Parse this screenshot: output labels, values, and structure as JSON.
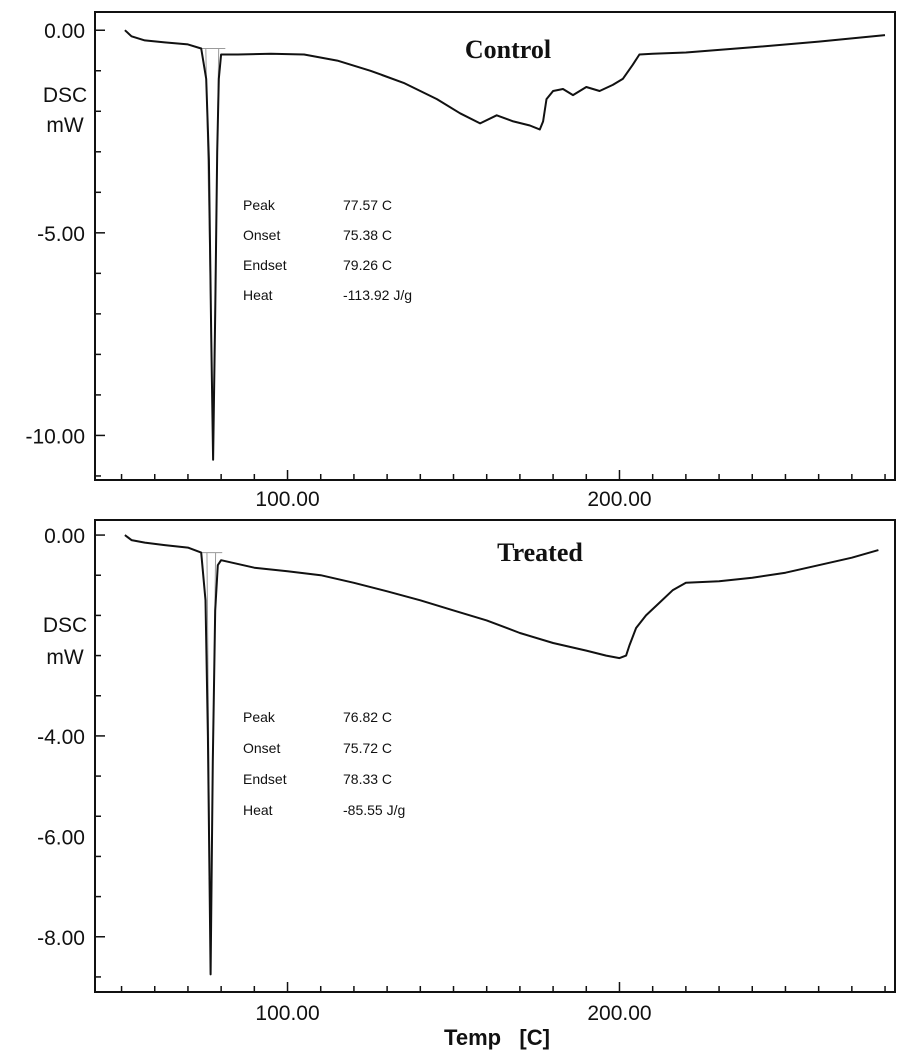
{
  "chart_data": [
    {
      "type": "line",
      "title": "Control",
      "ylabel_lines": [
        "DSC",
        "mW"
      ],
      "xlabel": "",
      "xlim": [
        42,
        283
      ],
      "ylim": [
        -11.1,
        0.45
      ],
      "x_ticks": [
        100,
        200
      ],
      "x_tick_labels": [
        "100.00",
        "200.00"
      ],
      "y_ticks": [
        0,
        -5,
        -10
      ],
      "y_tick_labels": [
        "0.00",
        "-5.00",
        "-10.00"
      ],
      "annotations": [
        {
          "label": "Peak",
          "value": "77.57 C"
        },
        {
          "label": "Onset",
          "value": "75.38 C"
        },
        {
          "label": "Endset",
          "value": "79.26 C"
        },
        {
          "label": "Heat",
          "value": "-113.92  J/g"
        }
      ],
      "series": [
        {
          "values": [
            [
              51.0,
              0.0
            ],
            [
              53.0,
              -0.15
            ],
            [
              57.0,
              -0.25
            ],
            [
              63.0,
              -0.3
            ],
            [
              70.0,
              -0.35
            ],
            [
              74.0,
              -0.45
            ],
            [
              75.5,
              -1.2
            ],
            [
              76.3,
              -3.2
            ],
            [
              77.0,
              -7.5
            ],
            [
              77.57,
              -10.6
            ],
            [
              78.2,
              -7.0
            ],
            [
              78.8,
              -3.0
            ],
            [
              79.3,
              -1.2
            ],
            [
              80.0,
              -0.6
            ],
            [
              85.0,
              -0.6
            ],
            [
              95.0,
              -0.58
            ],
            [
              105.0,
              -0.6
            ],
            [
              115.0,
              -0.75
            ],
            [
              125.0,
              -1.0
            ],
            [
              135.0,
              -1.3
            ],
            [
              145.0,
              -1.7
            ],
            [
              152.0,
              -2.05
            ],
            [
              158.0,
              -2.3
            ],
            [
              163.0,
              -2.1
            ],
            [
              168.0,
              -2.25
            ],
            [
              173.0,
              -2.35
            ],
            [
              176.0,
              -2.45
            ],
            [
              177.0,
              -2.25
            ],
            [
              178.0,
              -1.7
            ],
            [
              180.0,
              -1.5
            ],
            [
              183.0,
              -1.45
            ],
            [
              186.0,
              -1.6
            ],
            [
              190.0,
              -1.4
            ],
            [
              194.0,
              -1.5
            ],
            [
              198.0,
              -1.35
            ],
            [
              201.0,
              -1.2
            ],
            [
              204.0,
              -0.85
            ],
            [
              206.0,
              -0.6
            ],
            [
              210.0,
              -0.58
            ],
            [
              220.0,
              -0.55
            ],
            [
              240.0,
              -0.42
            ],
            [
              260.0,
              -0.28
            ],
            [
              280.0,
              -0.12
            ]
          ]
        }
      ]
    },
    {
      "type": "line",
      "title": "Treated",
      "ylabel_lines": [
        "DSC",
        "mW"
      ],
      "xlabel": "Temp   [C]",
      "xlim": [
        42,
        283
      ],
      "ylim": [
        -9.1,
        0.3
      ],
      "x_ticks": [
        100,
        200
      ],
      "x_tick_labels": [
        "100.00",
        "200.00"
      ],
      "y_ticks": [
        0,
        -4,
        -6,
        -8
      ],
      "y_tick_labels": [
        "0.00",
        "-4.00",
        "-6.00",
        "-8.00"
      ],
      "annotations": [
        {
          "label": "Peak",
          "value": "76.82 C"
        },
        {
          "label": "Onset",
          "value": "75.72 C"
        },
        {
          "label": "Endset",
          "value": "78.33 C"
        },
        {
          "label": "Heat",
          "value": "-85.55  J/g"
        }
      ],
      "series": [
        {
          "values": [
            [
              51.0,
              0.0
            ],
            [
              53.0,
              -0.1
            ],
            [
              57.0,
              -0.15
            ],
            [
              63.0,
              -0.2
            ],
            [
              70.0,
              -0.25
            ],
            [
              74.0,
              -0.35
            ],
            [
              75.3,
              -1.3
            ],
            [
              76.0,
              -4.0
            ],
            [
              76.82,
              -8.75
            ],
            [
              77.5,
              -4.5
            ],
            [
              78.2,
              -1.5
            ],
            [
              79.0,
              -0.6
            ],
            [
              80.0,
              -0.5
            ],
            [
              90.0,
              -0.65
            ],
            [
              100.0,
              -0.72
            ],
            [
              110.0,
              -0.8
            ],
            [
              120.0,
              -0.95
            ],
            [
              130.0,
              -1.12
            ],
            [
              140.0,
              -1.3
            ],
            [
              150.0,
              -1.5
            ],
            [
              160.0,
              -1.7
            ],
            [
              170.0,
              -1.95
            ],
            [
              180.0,
              -2.15
            ],
            [
              190.0,
              -2.3
            ],
            [
              196.0,
              -2.4
            ],
            [
              200.0,
              -2.45
            ],
            [
              202.0,
              -2.4
            ],
            [
              203.0,
              -2.2
            ],
            [
              205.0,
              -1.85
            ],
            [
              208.0,
              -1.6
            ],
            [
              212.0,
              -1.35
            ],
            [
              216.0,
              -1.1
            ],
            [
              220.0,
              -0.95
            ],
            [
              230.0,
              -0.92
            ],
            [
              240.0,
              -0.85
            ],
            [
              250.0,
              -0.75
            ],
            [
              260.0,
              -0.6
            ],
            [
              270.0,
              -0.45
            ],
            [
              278.0,
              -0.3
            ]
          ]
        }
      ]
    }
  ]
}
